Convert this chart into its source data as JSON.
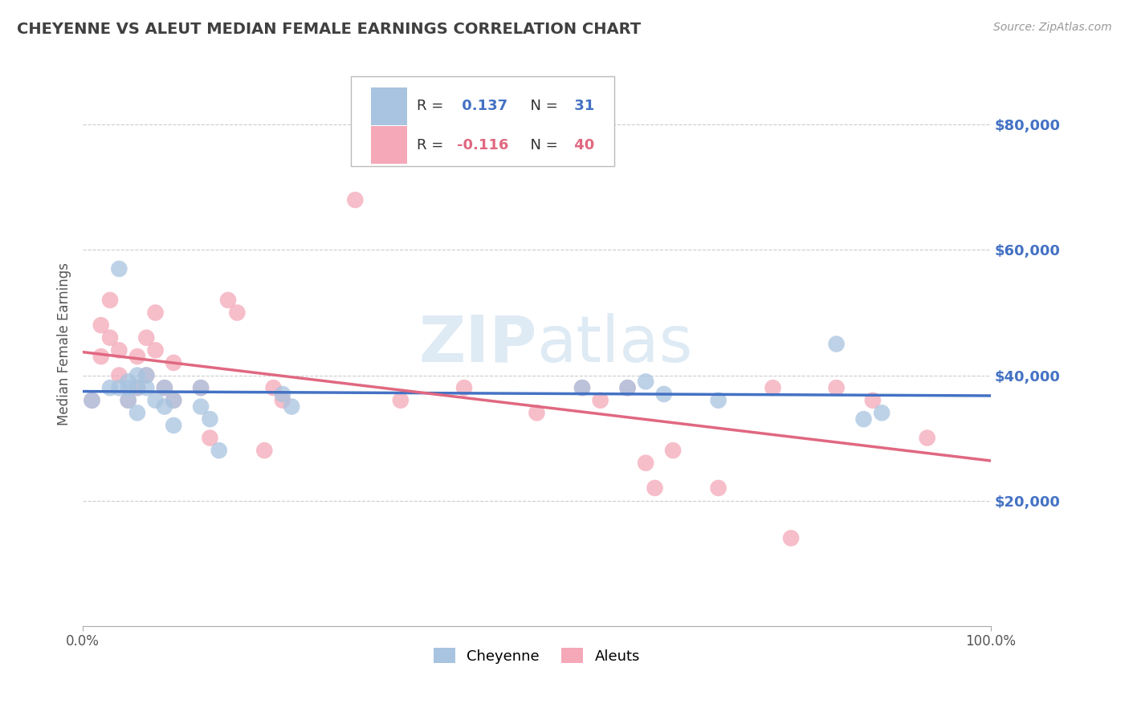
{
  "title": "CHEYENNE VS ALEUT MEDIAN FEMALE EARNINGS CORRELATION CHART",
  "source_text": "Source: ZipAtlas.com",
  "ylabel": "Median Female Earnings",
  "xlim": [
    0,
    1
  ],
  "ylim": [
    0,
    90000
  ],
  "yticks": [
    20000,
    40000,
    60000,
    80000
  ],
  "ytick_labels": [
    "$20,000",
    "$40,000",
    "$60,000",
    "$80,000"
  ],
  "xticks": [
    0,
    1
  ],
  "xtick_labels": [
    "0.0%",
    "100.0%"
  ],
  "legend_labels": [
    "Cheyenne",
    "Aleuts"
  ],
  "cheyenne_R": 0.137,
  "cheyenne_N": 31,
  "aleut_R": -0.116,
  "aleut_N": 40,
  "cheyenne_color": "#a8c4e0",
  "aleut_color": "#f4a8b8",
  "cheyenne_line_color": "#4472c4",
  "aleut_line_color": "#e06880",
  "background_color": "#ffffff",
  "grid_color": "#cccccc",
  "title_color": "#404040",
  "cheyenne_x": [
    0.01,
    0.03,
    0.04,
    0.04,
    0.05,
    0.05,
    0.05,
    0.06,
    0.06,
    0.06,
    0.07,
    0.07,
    0.08,
    0.09,
    0.09,
    0.1,
    0.1,
    0.13,
    0.13,
    0.14,
    0.15,
    0.22,
    0.23,
    0.55,
    0.6,
    0.62,
    0.64,
    0.7,
    0.83,
    0.86,
    0.88
  ],
  "cheyenne_y": [
    36000,
    38000,
    38000,
    57000,
    39000,
    38000,
    36000,
    40000,
    38000,
    34000,
    40000,
    38000,
    36000,
    38000,
    35000,
    36000,
    32000,
    38000,
    35000,
    33000,
    28000,
    37000,
    35000,
    38000,
    38000,
    39000,
    37000,
    36000,
    45000,
    33000,
    34000
  ],
  "aleut_x": [
    0.01,
    0.02,
    0.02,
    0.03,
    0.03,
    0.04,
    0.04,
    0.05,
    0.06,
    0.06,
    0.07,
    0.07,
    0.08,
    0.08,
    0.09,
    0.1,
    0.1,
    0.13,
    0.14,
    0.16,
    0.17,
    0.2,
    0.21,
    0.22,
    0.3,
    0.35,
    0.42,
    0.5,
    0.55,
    0.57,
    0.6,
    0.62,
    0.63,
    0.65,
    0.7,
    0.76,
    0.78,
    0.83,
    0.87,
    0.93
  ],
  "aleut_y": [
    36000,
    43000,
    48000,
    52000,
    46000,
    44000,
    40000,
    36000,
    43000,
    38000,
    46000,
    40000,
    44000,
    50000,
    38000,
    42000,
    36000,
    38000,
    30000,
    52000,
    50000,
    28000,
    38000,
    36000,
    68000,
    36000,
    38000,
    34000,
    38000,
    36000,
    38000,
    26000,
    22000,
    28000,
    22000,
    38000,
    14000,
    38000,
    36000,
    30000
  ]
}
